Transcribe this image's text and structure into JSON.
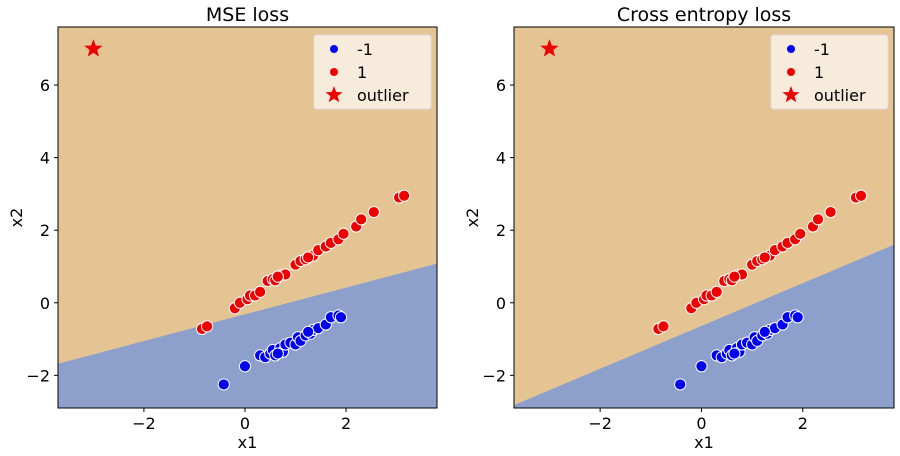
{
  "colors": {
    "region_positive": "#e5c494",
    "region_negative": "#8da0cb",
    "class_neg": "#0000ee",
    "class_pos": "#ee0000",
    "outlier": "#ee0000"
  },
  "legend": {
    "placement": "top-right",
    "items": [
      "-1",
      "1",
      "outlier"
    ]
  },
  "chart_data": [
    {
      "type": "scatter",
      "title": "MSE loss",
      "xlabel": "x1",
      "ylabel": "x2",
      "xlim": [
        -3.7,
        3.8
      ],
      "ylim": [
        -2.9,
        7.6
      ],
      "xticks": [
        -2,
        0,
        2
      ],
      "yticks": [
        -2,
        0,
        2,
        4,
        6
      ],
      "boundary": {
        "x": [
          -3.7,
          3.8
        ],
        "y": [
          -1.68,
          1.08
        ]
      },
      "grid": false,
      "series": [
        {
          "name": "-1",
          "points": [
            [
              -0.42,
              -2.25
            ],
            [
              0.0,
              -1.75
            ],
            [
              0.3,
              -1.45
            ],
            [
              0.4,
              -1.5
            ],
            [
              0.5,
              -1.4
            ],
            [
              0.55,
              -1.3
            ],
            [
              0.6,
              -1.45
            ],
            [
              0.7,
              -1.25
            ],
            [
              0.75,
              -1.35
            ],
            [
              0.8,
              -1.15
            ],
            [
              0.9,
              -1.1
            ],
            [
              1.0,
              -1.15
            ],
            [
              1.05,
              -0.95
            ],
            [
              1.1,
              -1.05
            ],
            [
              1.2,
              -0.9
            ],
            [
              1.3,
              -0.85
            ],
            [
              1.35,
              -0.75
            ],
            [
              1.45,
              -0.7
            ],
            [
              1.6,
              -0.6
            ],
            [
              1.7,
              -0.4
            ],
            [
              1.85,
              -0.35
            ],
            [
              1.9,
              -0.4
            ],
            [
              0.65,
              -1.4
            ],
            [
              1.25,
              -0.8
            ]
          ]
        },
        {
          "name": "1",
          "points": [
            [
              -0.85,
              -0.72
            ],
            [
              -0.75,
              -0.65
            ],
            [
              -0.2,
              -0.15
            ],
            [
              -0.1,
              0.0
            ],
            [
              0.05,
              0.1
            ],
            [
              0.1,
              0.2
            ],
            [
              0.2,
              0.2
            ],
            [
              0.3,
              0.3
            ],
            [
              0.45,
              0.6
            ],
            [
              0.55,
              0.65
            ],
            [
              0.6,
              0.62
            ],
            [
              0.7,
              0.75
            ],
            [
              0.8,
              0.78
            ],
            [
              1.0,
              1.05
            ],
            [
              1.1,
              1.15
            ],
            [
              1.2,
              1.2
            ],
            [
              1.35,
              1.3
            ],
            [
              1.45,
              1.45
            ],
            [
              1.6,
              1.55
            ],
            [
              1.7,
              1.65
            ],
            [
              1.85,
              1.75
            ],
            [
              1.95,
              1.9
            ],
            [
              2.2,
              2.1
            ],
            [
              2.3,
              2.3
            ],
            [
              2.55,
              2.5
            ],
            [
              3.05,
              2.9
            ],
            [
              3.15,
              2.95
            ],
            [
              0.65,
              0.72
            ],
            [
              1.25,
              1.25
            ]
          ]
        },
        {
          "name": "outlier",
          "points": [
            [
              -3.0,
              7.0
            ]
          ]
        }
      ]
    },
    {
      "type": "scatter",
      "title": "Cross entropy loss",
      "xlabel": "x1",
      "ylabel": "x2",
      "xlim": [
        -3.7,
        3.8
      ],
      "ylim": [
        -2.9,
        7.6
      ],
      "xticks": [
        -2,
        0,
        2
      ],
      "yticks": [
        -2,
        0,
        2,
        4,
        6
      ],
      "boundary": {
        "x": [
          -3.7,
          3.8
        ],
        "y": [
          -2.82,
          1.6
        ]
      },
      "grid": false,
      "series": [
        {
          "name": "-1",
          "points": [
            [
              -0.42,
              -2.25
            ],
            [
              0.0,
              -1.75
            ],
            [
              0.3,
              -1.45
            ],
            [
              0.4,
              -1.5
            ],
            [
              0.5,
              -1.4
            ],
            [
              0.55,
              -1.3
            ],
            [
              0.6,
              -1.45
            ],
            [
              0.7,
              -1.25
            ],
            [
              0.75,
              -1.35
            ],
            [
              0.8,
              -1.15
            ],
            [
              0.9,
              -1.1
            ],
            [
              1.0,
              -1.15
            ],
            [
              1.05,
              -0.95
            ],
            [
              1.1,
              -1.05
            ],
            [
              1.2,
              -0.9
            ],
            [
              1.3,
              -0.85
            ],
            [
              1.35,
              -0.75
            ],
            [
              1.45,
              -0.7
            ],
            [
              1.6,
              -0.6
            ],
            [
              1.7,
              -0.4
            ],
            [
              1.85,
              -0.35
            ],
            [
              1.9,
              -0.4
            ],
            [
              0.65,
              -1.4
            ],
            [
              1.25,
              -0.8
            ]
          ]
        },
        {
          "name": "1",
          "points": [
            [
              -0.85,
              -0.72
            ],
            [
              -0.75,
              -0.65
            ],
            [
              -0.2,
              -0.15
            ],
            [
              -0.1,
              0.0
            ],
            [
              0.05,
              0.1
            ],
            [
              0.1,
              0.2
            ],
            [
              0.2,
              0.2
            ],
            [
              0.3,
              0.3
            ],
            [
              0.45,
              0.6
            ],
            [
              0.55,
              0.65
            ],
            [
              0.6,
              0.62
            ],
            [
              0.7,
              0.75
            ],
            [
              0.8,
              0.78
            ],
            [
              1.0,
              1.05
            ],
            [
              1.1,
              1.15
            ],
            [
              1.2,
              1.2
            ],
            [
              1.35,
              1.3
            ],
            [
              1.45,
              1.45
            ],
            [
              1.6,
              1.55
            ],
            [
              1.7,
              1.65
            ],
            [
              1.85,
              1.75
            ],
            [
              1.95,
              1.9
            ],
            [
              2.2,
              2.1
            ],
            [
              2.3,
              2.3
            ],
            [
              2.55,
              2.5
            ],
            [
              3.05,
              2.9
            ],
            [
              3.15,
              2.95
            ],
            [
              0.65,
              0.72
            ],
            [
              1.25,
              1.25
            ]
          ]
        },
        {
          "name": "outlier",
          "points": [
            [
              -3.0,
              7.0
            ]
          ]
        }
      ]
    }
  ]
}
